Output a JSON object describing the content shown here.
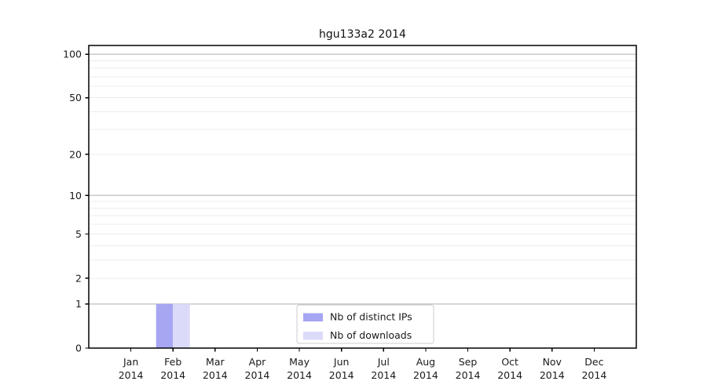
{
  "chart_data": {
    "type": "bar",
    "title": "hgu133a2 2014",
    "x_tick_labels": [
      {
        "month": "Jan",
        "year": "2014"
      },
      {
        "month": "Feb",
        "year": "2014"
      },
      {
        "month": "Mar",
        "year": "2014"
      },
      {
        "month": "Apr",
        "year": "2014"
      },
      {
        "month": "May",
        "year": "2014"
      },
      {
        "month": "Jun",
        "year": "2014"
      },
      {
        "month": "Jul",
        "year": "2014"
      },
      {
        "month": "Aug",
        "year": "2014"
      },
      {
        "month": "Sep",
        "year": "2014"
      },
      {
        "month": "Oct",
        "year": "2014"
      },
      {
        "month": "Nov",
        "year": "2014"
      },
      {
        "month": "Dec",
        "year": "2014"
      }
    ],
    "series": [
      {
        "name": "Nb of distinct IPs",
        "color": "#a6a6f3",
        "values": [
          0,
          1,
          0,
          0,
          0,
          0,
          0,
          0,
          0,
          0,
          0,
          0
        ]
      },
      {
        "name": "Nb of downloads",
        "color": "#dbdbf9",
        "values": [
          0,
          1,
          0,
          0,
          0,
          0,
          0,
          0,
          0,
          0,
          0,
          0
        ]
      }
    ],
    "y_ticks": [
      0,
      1,
      2,
      5,
      10,
      20,
      50,
      100
    ],
    "y_scale": "log1p",
    "ylim": [
      0,
      115
    ],
    "grid": {
      "major_values": [
        1,
        10,
        100
      ],
      "minor_values": [
        2,
        3,
        4,
        5,
        6,
        7,
        8,
        9,
        20,
        30,
        40,
        50,
        60,
        70,
        80,
        90
      ],
      "major_color": "#c9c9c9",
      "minor_color": "#ececec"
    },
    "legend": {
      "position": "lower center",
      "entries": [
        "Nb of distinct IPs",
        "Nb of downloads"
      ]
    },
    "axis_color": "#000000",
    "text_color": "#1a1a1a"
  }
}
